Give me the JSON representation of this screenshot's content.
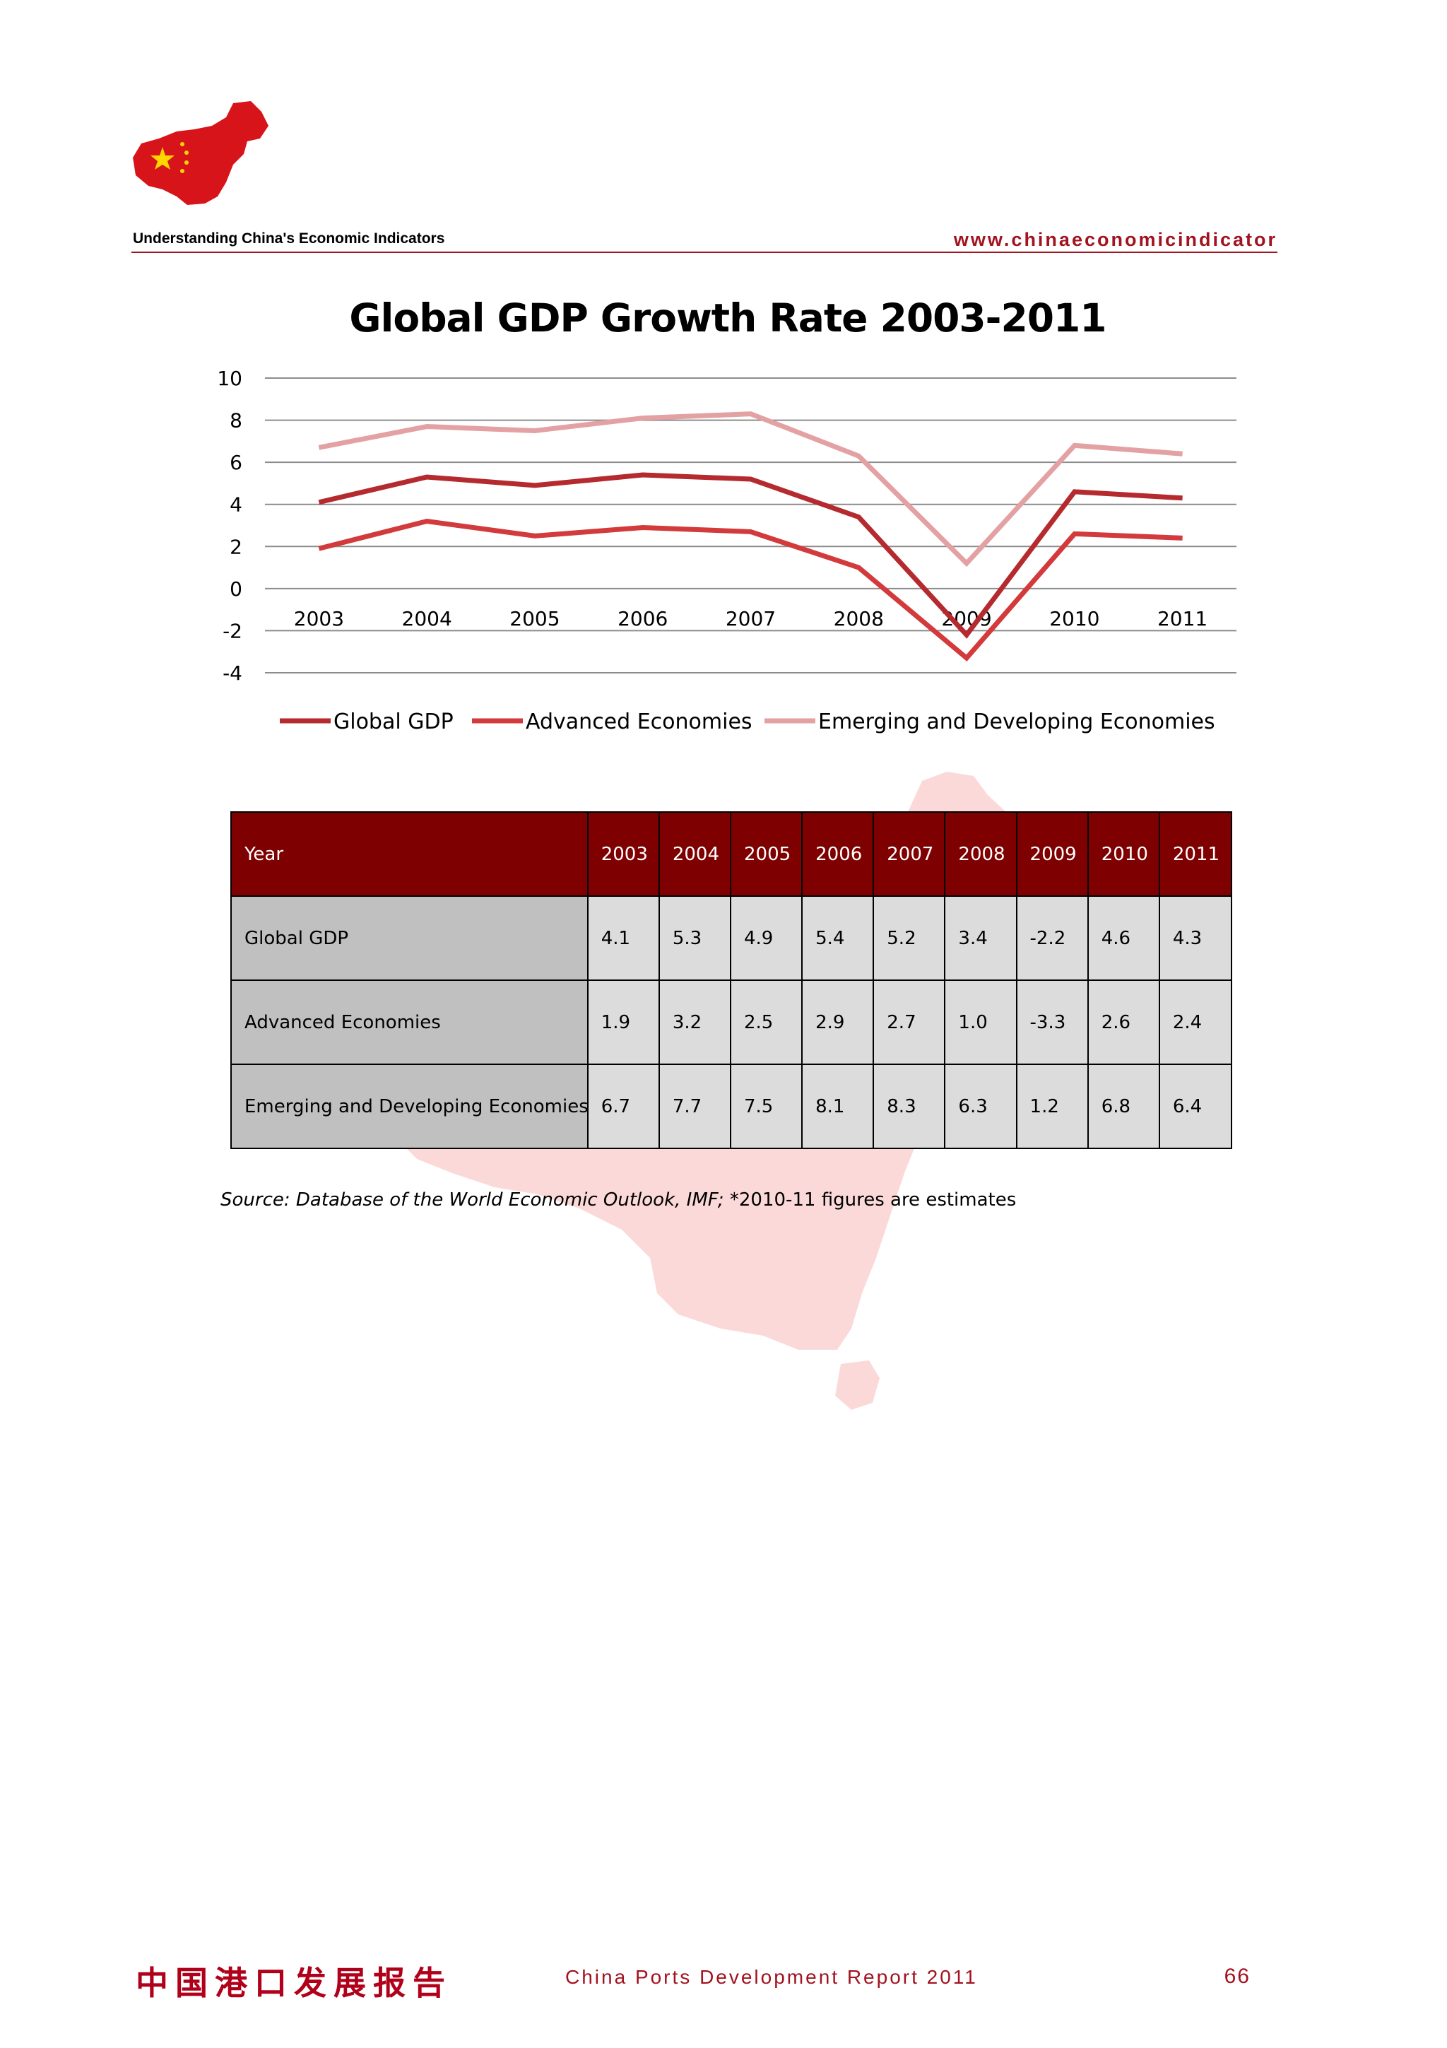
{
  "header": {
    "left_text": "Understanding China's Economic Indicators",
    "right_text": "www.chinaeconomicindicator"
  },
  "colors": {
    "global_gdp": "#b52a2e",
    "advanced": "#d33a3c",
    "emerging": "#e3a1a3",
    "table_header": "#7f0000",
    "accent": "#a2121f"
  },
  "chart_data": {
    "type": "line",
    "title": "Global GDP Growth Rate 2003-2011",
    "categories": [
      "2003",
      "2004",
      "2005",
      "2006",
      "2007",
      "2008",
      "2009",
      "2010",
      "2011"
    ],
    "ylim": [
      -4,
      10
    ],
    "yticks": [
      "10",
      "8",
      "6",
      "4",
      "2",
      "0",
      "-2",
      "-4"
    ],
    "grid": true,
    "legend_position": "bottom",
    "series": [
      {
        "name": "Global GDP",
        "values": [
          4.1,
          5.3,
          4.9,
          5.4,
          5.2,
          3.4,
          -2.2,
          4.6,
          4.3
        ]
      },
      {
        "name": "Advanced Economies",
        "values": [
          1.9,
          3.2,
          2.5,
          2.9,
          2.7,
          1.0,
          -3.3,
          2.6,
          2.4
        ]
      },
      {
        "name": "Emerging and Developing Economies",
        "values": [
          6.7,
          7.7,
          7.5,
          8.1,
          8.3,
          6.3,
          1.2,
          6.8,
          6.4
        ]
      }
    ]
  },
  "table": {
    "header_label": "Year",
    "years": [
      "2003",
      "2004",
      "2005",
      "2006",
      "2007",
      "2008",
      "2009",
      "2010",
      "2011"
    ],
    "rows": [
      {
        "label": "Global GDP",
        "values": [
          "4.1",
          "5.3",
          "4.9",
          "5.4",
          "5.2",
          "3.4",
          "-2.2",
          "4.6",
          "4.3"
        ]
      },
      {
        "label": "Advanced Economies",
        "values": [
          "1.9",
          "3.2",
          "2.5",
          "2.9",
          "2.7",
          "1.0",
          "-3.3",
          "2.6",
          "2.4"
        ]
      },
      {
        "label": "Emerging and Developing Economies",
        "values": [
          "6.7",
          "7.7",
          "7.5",
          "8.1",
          "8.3",
          "6.3",
          "1.2",
          "6.8",
          "6.4"
        ]
      }
    ]
  },
  "source": {
    "italic": "Source: Database of the World Economic Outlook, IMF;",
    "normal": " *2010-11 figures are estimates"
  },
  "footer": {
    "cn_title": "中国港口发展报告",
    "center": "China Ports Development Report 2011",
    "page": "66"
  }
}
